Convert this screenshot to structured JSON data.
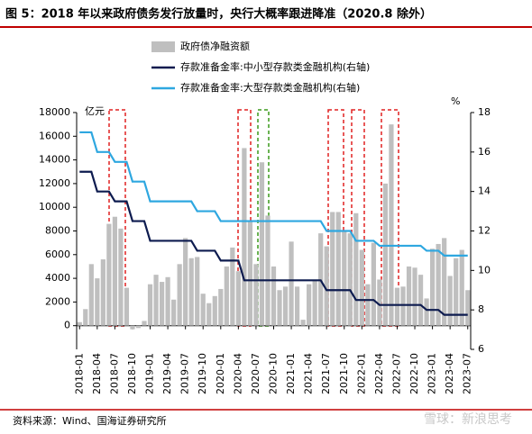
{
  "chart_data": {
    "type": "bar+line",
    "title": "图 5：2018 年以来政府债务发行放量时，央行大概率跟进降准（2020.8 除外）",
    "y_unit": "亿元",
    "y2_unit": "%",
    "source": "资料来源：Wind、国海证券研究所",
    "watermark": "雪球：新浪思考",
    "categories": [
      "2018-01",
      null,
      null,
      "2018-04",
      null,
      null,
      "2018-07",
      null,
      null,
      "2018-10",
      null,
      null,
      "2019-01",
      null,
      null,
      "2019-04",
      null,
      null,
      "2019-07",
      null,
      null,
      "2019-10",
      null,
      null,
      "2020-01",
      null,
      null,
      "2020-04",
      null,
      null,
      "2020-07",
      null,
      null,
      "2020-10",
      null,
      null,
      "2021-01",
      null,
      null,
      "2021-04",
      null,
      null,
      "2021-07",
      null,
      null,
      "2021-10",
      null,
      null,
      "2022-01",
      null,
      null,
      "2022-04",
      null,
      null,
      "2022-07",
      null,
      null,
      "2022-10",
      null,
      null,
      "2023-01",
      null,
      null,
      "2023-04",
      null,
      null,
      "2023-07"
    ],
    "series": [
      {
        "name": "政府债净融资额",
        "type": "bar",
        "color": "#bfbfbf",
        "values": [
          300,
          1400,
          5200,
          4000,
          5600,
          8600,
          9200,
          8200,
          3200,
          -300,
          -200,
          400,
          3500,
          4300,
          3700,
          4100,
          2200,
          5200,
          7400,
          5700,
          5800,
          2700,
          1900,
          2500,
          3100,
          5000,
          6600,
          4600,
          15000,
          8900,
          5200,
          13800,
          9300,
          5000,
          3000,
          3300,
          7100,
          3300,
          500,
          3500,
          3800,
          7800,
          6700,
          9600,
          9600,
          8000,
          7800,
          9500,
          6400,
          3500,
          7000,
          3900,
          12000,
          17000,
          3200,
          3300,
          5000,
          4900,
          4300,
          2300,
          6500,
          6900,
          7400,
          4200,
          5700,
          6400,
          3000
        ]
      },
      {
        "name": "存款准备金率:中小型存款类金融机构(右轴)",
        "type": "line",
        "axis": "y2",
        "color": "#0d1b4f",
        "values": [
          15,
          15,
          15,
          14,
          14,
          14,
          13.5,
          13.5,
          13.5,
          12.5,
          12.5,
          12.5,
          11.5,
          11.5,
          11.5,
          11.5,
          11.5,
          11.5,
          11.5,
          11.5,
          11,
          11,
          11,
          11,
          10.5,
          10.5,
          10.5,
          10.5,
          9.5,
          9.5,
          9.5,
          9.5,
          9.5,
          9.5,
          9.5,
          9.5,
          9.5,
          9.5,
          9.5,
          9.5,
          9.5,
          9.5,
          9,
          9,
          9,
          9,
          9,
          8.5,
          8.5,
          8.5,
          8.5,
          8.25,
          8.25,
          8.25,
          8.25,
          8.25,
          8.25,
          8.25,
          8.25,
          8,
          8,
          8,
          7.75,
          7.75,
          7.75,
          7.75,
          7.75
        ]
      },
      {
        "name": "存款准备金率:大型存款类金融机构(右轴)",
        "type": "line",
        "axis": "y2",
        "color": "#2ea7e0",
        "values": [
          17,
          17,
          17,
          16,
          16,
          16,
          15.5,
          15.5,
          15.5,
          14.5,
          14.5,
          14.5,
          13.5,
          13.5,
          13.5,
          13.5,
          13.5,
          13.5,
          13.5,
          13.5,
          13,
          13,
          13,
          13,
          12.5,
          12.5,
          12.5,
          12.5,
          12.5,
          12.5,
          12.5,
          12.5,
          12.5,
          12.5,
          12.5,
          12.5,
          12.5,
          12.5,
          12.5,
          12.5,
          12.5,
          12.5,
          12,
          12,
          12,
          12,
          12,
          11.5,
          11.5,
          11.5,
          11.5,
          11.25,
          11.25,
          11.25,
          11.25,
          11.25,
          11.25,
          11.25,
          11.25,
          11,
          11,
          11,
          10.75,
          10.75,
          10.75,
          10.75,
          10.75
        ]
      }
    ],
    "ylim": [
      -2000,
      18000
    ],
    "yticks": [
      0,
      2000,
      4000,
      6000,
      8000,
      10000,
      12000,
      14000,
      16000,
      18000
    ],
    "y2lim": [
      6,
      18
    ],
    "y2ticks": [
      6,
      8,
      10,
      12,
      14,
      16,
      18
    ]
  }
}
